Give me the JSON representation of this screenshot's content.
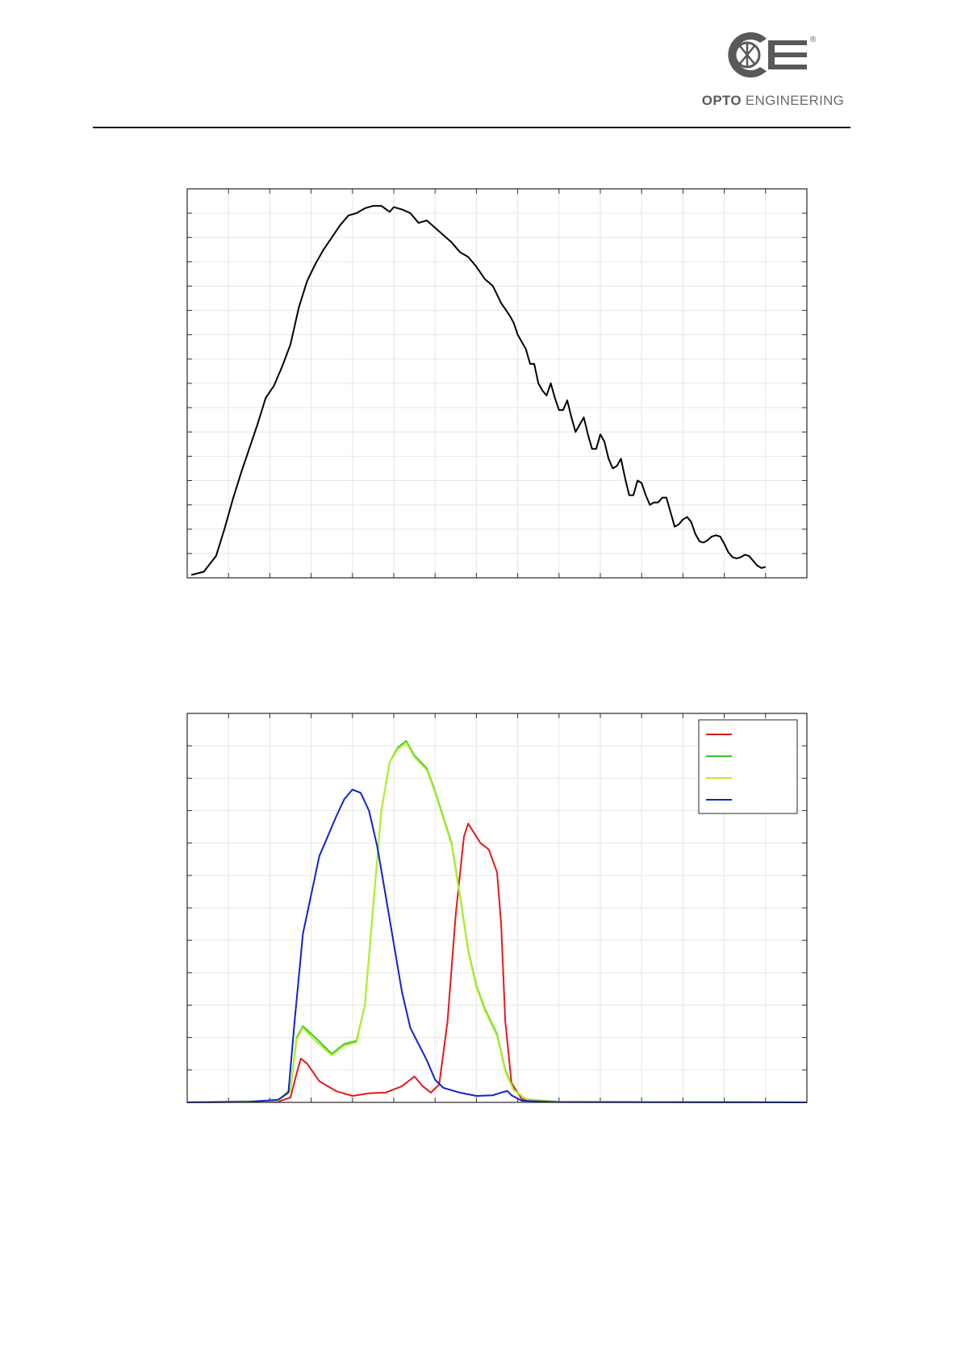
{
  "logo": {
    "brand_bold": "OPTO",
    "brand_rest": " ENGINEERING",
    "registered": "®",
    "gray": "#595959"
  },
  "chart_data": [
    {
      "type": "line",
      "title": "",
      "xlabel": "",
      "ylabel": "",
      "xlim": [
        0,
        15
      ],
      "ylim": [
        0,
        16
      ],
      "x_grid_step": 1,
      "y_grid_step": 1,
      "grid": true,
      "series": [
        {
          "color": "#000000",
          "points": [
            [
              0.1,
              0.12
            ],
            [
              0.4,
              0.25
            ],
            [
              0.7,
              0.9
            ],
            [
              0.9,
              2.0
            ],
            [
              1.1,
              3.2
            ],
            [
              1.3,
              4.3
            ],
            [
              1.5,
              5.3
            ],
            [
              1.7,
              6.3
            ],
            [
              1.9,
              7.4
            ],
            [
              2.1,
              7.9
            ],
            [
              2.3,
              8.7
            ],
            [
              2.5,
              9.6
            ],
            [
              2.7,
              11.1
            ],
            [
              2.9,
              12.2
            ],
            [
              3.1,
              12.9
            ],
            [
              3.3,
              13.5
            ],
            [
              3.5,
              14.0
            ],
            [
              3.7,
              14.5
            ],
            [
              3.9,
              14.9
            ],
            [
              4.1,
              15.0
            ],
            [
              4.3,
              15.2
            ],
            [
              4.5,
              15.3
            ],
            [
              4.7,
              15.3
            ],
            [
              4.9,
              15.05
            ],
            [
              5.0,
              15.25
            ],
            [
              5.2,
              15.15
            ],
            [
              5.4,
              15.0
            ],
            [
              5.6,
              14.6
            ],
            [
              5.8,
              14.7
            ],
            [
              6.0,
              14.4
            ],
            [
              6.2,
              14.1
            ],
            [
              6.4,
              13.8
            ],
            [
              6.6,
              13.4
            ],
            [
              6.8,
              13.2
            ],
            [
              7.0,
              12.8
            ],
            [
              7.2,
              12.3
            ],
            [
              7.4,
              12.0
            ],
            [
              7.6,
              11.3
            ],
            [
              7.8,
              10.8
            ],
            [
              7.9,
              10.5
            ],
            [
              8.0,
              10.0
            ],
            [
              8.1,
              9.7
            ],
            [
              8.2,
              9.4
            ],
            [
              8.3,
              8.8
            ],
            [
              8.4,
              8.8
            ],
            [
              8.5,
              8.0
            ],
            [
              8.6,
              7.7
            ],
            [
              8.7,
              7.5
            ],
            [
              8.8,
              8.0
            ],
            [
              8.9,
              7.4
            ],
            [
              9.0,
              6.9
            ],
            [
              9.1,
              6.9
            ],
            [
              9.2,
              7.3
            ],
            [
              9.3,
              6.6
            ],
            [
              9.4,
              6.0
            ],
            [
              9.5,
              6.3
            ],
            [
              9.6,
              6.6
            ],
            [
              9.7,
              5.9
            ],
            [
              9.8,
              5.3
            ],
            [
              9.9,
              5.3
            ],
            [
              10.0,
              5.9
            ],
            [
              10.1,
              5.6
            ],
            [
              10.2,
              4.9
            ],
            [
              10.3,
              4.5
            ],
            [
              10.4,
              4.6
            ],
            [
              10.5,
              4.9
            ],
            [
              10.6,
              4.1
            ],
            [
              10.7,
              3.4
            ],
            [
              10.8,
              3.4
            ],
            [
              10.9,
              4.0
            ],
            [
              11.0,
              3.9
            ],
            [
              11.1,
              3.4
            ],
            [
              11.2,
              3.0
            ],
            [
              11.3,
              3.1
            ],
            [
              11.4,
              3.1
            ],
            [
              11.5,
              3.3
            ],
            [
              11.6,
              3.3
            ],
            [
              11.7,
              2.7
            ],
            [
              11.8,
              2.1
            ],
            [
              11.9,
              2.2
            ],
            [
              12.0,
              2.4
            ],
            [
              12.1,
              2.5
            ],
            [
              12.2,
              2.3
            ],
            [
              12.3,
              1.8
            ],
            [
              12.4,
              1.5
            ],
            [
              12.5,
              1.45
            ],
            [
              12.6,
              1.55
            ],
            [
              12.7,
              1.7
            ],
            [
              12.8,
              1.75
            ],
            [
              12.9,
              1.7
            ],
            [
              13.0,
              1.4
            ],
            [
              13.1,
              1.05
            ],
            [
              13.2,
              0.85
            ],
            [
              13.3,
              0.8
            ],
            [
              13.4,
              0.85
            ],
            [
              13.5,
              0.95
            ],
            [
              13.6,
              0.9
            ],
            [
              13.7,
              0.7
            ],
            [
              13.8,
              0.5
            ],
            [
              13.9,
              0.4
            ],
            [
              14.0,
              0.45
            ]
          ]
        }
      ]
    },
    {
      "type": "line",
      "title": "",
      "xlabel": "",
      "ylabel": "",
      "xlim": [
        0,
        15
      ],
      "ylim": [
        0,
        12
      ],
      "x_grid_step": 1,
      "y_grid_step": 1,
      "grid": true,
      "legend": {
        "position": "top-right",
        "labels": [
          "",
          "",
          "",
          ""
        ]
      },
      "series": [
        {
          "color": "#e41a1c",
          "points": [
            [
              0,
              0
            ],
            [
              2.2,
              0.02
            ],
            [
              2.5,
              0.15
            ],
            [
              2.65,
              0.9
            ],
            [
              2.75,
              1.35
            ],
            [
              2.9,
              1.2
            ],
            [
              3.2,
              0.65
            ],
            [
              3.6,
              0.35
            ],
            [
              4.0,
              0.2
            ],
            [
              4.4,
              0.28
            ],
            [
              4.8,
              0.3
            ],
            [
              5.2,
              0.5
            ],
            [
              5.5,
              0.8
            ],
            [
              5.7,
              0.5
            ],
            [
              5.9,
              0.3
            ],
            [
              6.1,
              0.55
            ],
            [
              6.3,
              2.5
            ],
            [
              6.5,
              5.8
            ],
            [
              6.7,
              8.2
            ],
            [
              6.8,
              8.6
            ],
            [
              6.9,
              8.4
            ],
            [
              7.1,
              8.0
            ],
            [
              7.3,
              7.8
            ],
            [
              7.5,
              7.1
            ],
            [
              7.6,
              5.5
            ],
            [
              7.7,
              2.5
            ],
            [
              7.85,
              0.6
            ],
            [
              8.1,
              0.1
            ],
            [
              8.5,
              0.02
            ],
            [
              15,
              0
            ]
          ]
        },
        {
          "color": "#2ecc1f",
          "points": [
            [
              0,
              0
            ],
            [
              2.2,
              0.05
            ],
            [
              2.5,
              0.4
            ],
            [
              2.65,
              2.0
            ],
            [
              2.8,
              2.35
            ],
            [
              3.1,
              2.0
            ],
            [
              3.5,
              1.5
            ],
            [
              3.8,
              1.8
            ],
            [
              4.1,
              1.9
            ],
            [
              4.3,
              3.0
            ],
            [
              4.5,
              6.0
            ],
            [
              4.7,
              9.0
            ],
            [
              4.9,
              10.5
            ],
            [
              5.1,
              10.95
            ],
            [
              5.3,
              11.15
            ],
            [
              5.5,
              10.7
            ],
            [
              5.8,
              10.3
            ],
            [
              6.0,
              9.6
            ],
            [
              6.2,
              8.8
            ],
            [
              6.4,
              8.0
            ],
            [
              6.6,
              6.4
            ],
            [
              6.8,
              4.7
            ],
            [
              7.0,
              3.6
            ],
            [
              7.2,
              2.9
            ],
            [
              7.5,
              2.1
            ],
            [
              7.7,
              1.0
            ],
            [
              7.9,
              0.4
            ],
            [
              8.2,
              0.1
            ],
            [
              9.0,
              0.02
            ],
            [
              15,
              0
            ]
          ]
        },
        {
          "color": "#b6ef2a",
          "points": [
            [
              0,
              0
            ],
            [
              2.2,
              0.05
            ],
            [
              2.5,
              0.35
            ],
            [
              2.65,
              1.95
            ],
            [
              2.8,
              2.3
            ],
            [
              3.1,
              1.9
            ],
            [
              3.5,
              1.45
            ],
            [
              3.8,
              1.75
            ],
            [
              4.1,
              1.85
            ],
            [
              4.3,
              3.0
            ],
            [
              4.5,
              6.0
            ],
            [
              4.7,
              9.0
            ],
            [
              4.9,
              10.5
            ],
            [
              5.1,
              10.9
            ],
            [
              5.3,
              11.1
            ],
            [
              5.5,
              10.65
            ],
            [
              5.8,
              10.25
            ],
            [
              6.0,
              9.55
            ],
            [
              6.2,
              8.75
            ],
            [
              6.4,
              7.95
            ],
            [
              6.6,
              6.35
            ],
            [
              6.8,
              4.65
            ],
            [
              7.0,
              3.55
            ],
            [
              7.2,
              2.85
            ],
            [
              7.5,
              2.05
            ],
            [
              7.7,
              0.95
            ],
            [
              7.9,
              0.38
            ],
            [
              8.2,
              0.1
            ],
            [
              9.0,
              0.02
            ],
            [
              15,
              0
            ]
          ]
        },
        {
          "color": "#1122cc",
          "points": [
            [
              0,
              0
            ],
            [
              1.5,
              0.02
            ],
            [
              2.2,
              0.08
            ],
            [
              2.45,
              0.3
            ],
            [
              2.6,
              2.5
            ],
            [
              2.8,
              5.2
            ],
            [
              3.0,
              6.4
            ],
            [
              3.2,
              7.6
            ],
            [
              3.4,
              8.2
            ],
            [
              3.6,
              8.8
            ],
            [
              3.8,
              9.35
            ],
            [
              4.0,
              9.65
            ],
            [
              4.2,
              9.55
            ],
            [
              4.4,
              9.0
            ],
            [
              4.6,
              7.9
            ],
            [
              4.8,
              6.4
            ],
            [
              5.0,
              4.9
            ],
            [
              5.2,
              3.4
            ],
            [
              5.4,
              2.3
            ],
            [
              5.6,
              1.8
            ],
            [
              5.8,
              1.3
            ],
            [
              6.0,
              0.7
            ],
            [
              6.2,
              0.45
            ],
            [
              6.6,
              0.3
            ],
            [
              7.0,
              0.2
            ],
            [
              7.4,
              0.22
            ],
            [
              7.6,
              0.3
            ],
            [
              7.75,
              0.35
            ],
            [
              7.85,
              0.22
            ],
            [
              8.1,
              0.05
            ],
            [
              9.0,
              0.01
            ],
            [
              15,
              0
            ]
          ]
        }
      ]
    }
  ]
}
